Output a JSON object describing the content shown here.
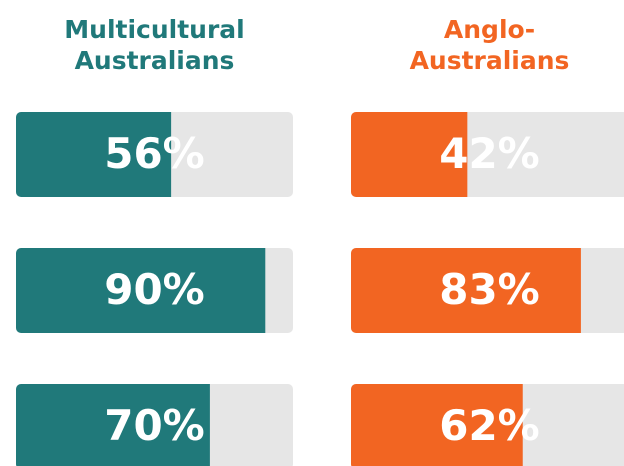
{
  "chart_data": [
    {
      "type": "bar",
      "title": "Multicultural Australians",
      "color": "#20797a",
      "track_color": "#e6e6e6",
      "values": [
        56,
        90,
        70
      ],
      "value_labels": [
        "56%",
        "90%",
        "70%"
      ],
      "ylim": [
        0,
        100
      ]
    },
    {
      "type": "bar",
      "title": "Anglo-Australians",
      "color": "#f26522",
      "track_color": "#e6e6e6",
      "values": [
        42,
        83,
        62
      ],
      "value_labels": [
        "42%",
        "83%",
        "62%"
      ],
      "ylim": [
        0,
        100
      ]
    }
  ]
}
